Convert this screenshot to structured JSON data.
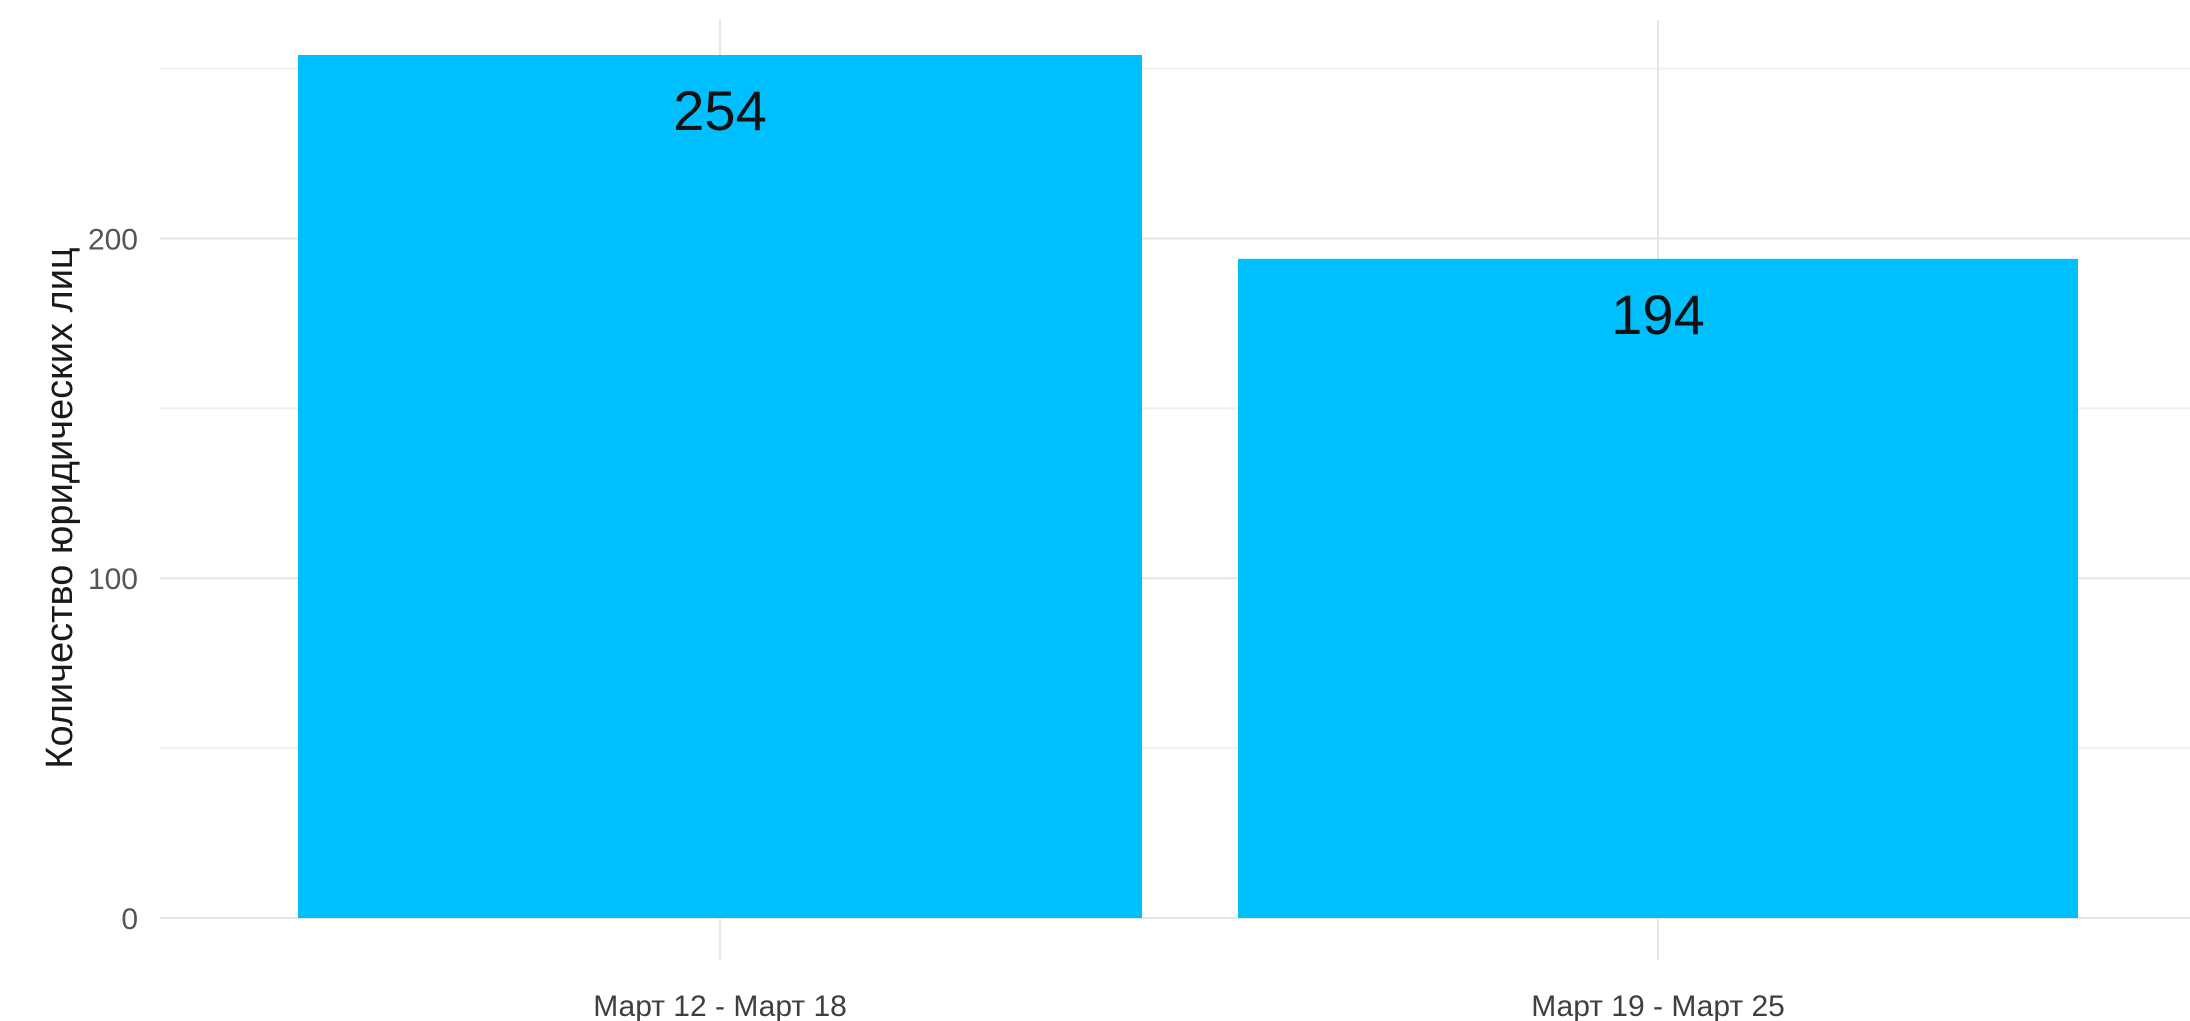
{
  "chart_data": {
    "type": "bar",
    "categories": [
      "Март 12 - Март 18",
      "Март 19 - Март 25"
    ],
    "values": [
      254,
      194
    ],
    "data_labels": [
      "254",
      "194"
    ],
    "title": "",
    "xlabel": "",
    "ylabel": "Количество юридических лиц",
    "ylim": [
      0,
      254
    ],
    "y_ticks": [
      0,
      100,
      200
    ],
    "y_tick_labels": [
      "0",
      "100",
      "200"
    ],
    "grid": true,
    "legend": "none",
    "bar_color": "#00bfff"
  }
}
